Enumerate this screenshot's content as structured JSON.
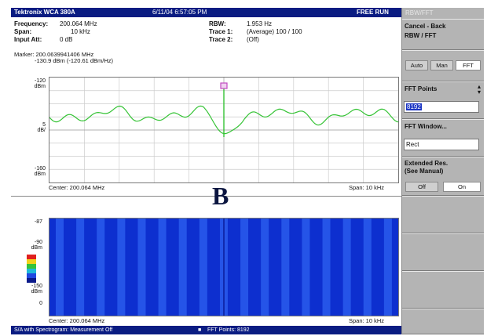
{
  "titlebar": {
    "brand": "Tektronix WCA 380A",
    "datetime": "6/11/04 6:57:05 PM",
    "mode": "FREE RUN"
  },
  "info": {
    "frequency_label": "Frequency:",
    "frequency_value": "200.064 MHz",
    "span_label": "Span:",
    "span_value": "10 kHz",
    "input_att_label": "Input Att:",
    "input_att_value": "0 dB",
    "rbw_label": "RBW:",
    "rbw_value": "1.953 Hz",
    "trace1_label": "Trace 1:",
    "trace1_value": "(Average) 100 / 100",
    "trace2_label": "Trace 2:",
    "trace2_value": "(Off)"
  },
  "spectrum": {
    "marker_line1": "Marker: 200.0639941406 MHz",
    "marker_line2": "-130.9 dBm (-120.61 dBm/Hz)",
    "ytop": "-120\ndBm",
    "ymid": "5\ndB/",
    "ybot": "-160\ndBm",
    "center": "Center: 200.064 MHz",
    "span": "Span: 10 kHz",
    "panel_letter": "B",
    "trace_color": "#35c335",
    "marker_color": "#c04ac0"
  },
  "spectrogram": {
    "ytop": "-87",
    "ymid": "-90\ndBm",
    "ybot": "-150\ndBm",
    "yzero": "0",
    "center": "Center: 200.064 MHz",
    "span": "Span: 10 kHz",
    "base_color": "#0d2fcf",
    "stripe_color": "#2e62f0"
  },
  "statusbar": {
    "left": "S/A with Spectrogram: Measurement Off",
    "right": "FFT Points: 8192"
  },
  "menu": {
    "title": "RBW/FFT",
    "cancel_back": "Cancel - Back",
    "rbw_fft": "RBW / FFT",
    "auto": "Auto",
    "man": "Man",
    "fft": "FFT",
    "fft_points_label": "FFT Points",
    "fft_points_value": "8192",
    "fft_window_label": "FFT Window...",
    "fft_window_value": "Rect",
    "extended_res_line1": "Extended Res.",
    "extended_res_line2": "(See Manual)",
    "off": "Off",
    "on": "On"
  }
}
